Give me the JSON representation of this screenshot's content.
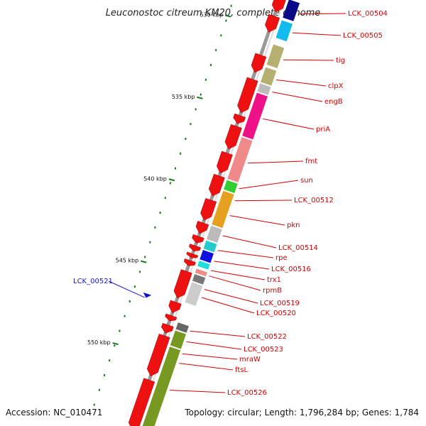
{
  "title": "Leuconostoc citreum KM20, complete genome",
  "footer": {
    "accession": "Accession: NC_010471",
    "summary": "Topology: circular; Length: 1,796,284 bp; Genes: 1,784"
  },
  "colors": {
    "backbone": "#999999",
    "cds_forward": "#ee1111",
    "label_red": "#d40000",
    "label_blue": "#1a1acc",
    "tick_green": "#1e7a1e"
  },
  "kbp_markers": [
    {
      "kbp": 530,
      "label": "530 kbp"
    },
    {
      "kbp": 535,
      "label": "535 kbp"
    },
    {
      "kbp": 540,
      "label": "540 kbp"
    },
    {
      "kbp": 545,
      "label": "545 kbp"
    },
    {
      "kbp": 550,
      "label": "550 kbp"
    }
  ],
  "genes": [
    {
      "name": "LCK_00504",
      "color": "#0a0a88"
    },
    {
      "name": "LCK_00505",
      "color": "#11bbee"
    },
    {
      "name": "tig",
      "color": "#b5b070"
    },
    {
      "name": "clpX",
      "color": "#b5b070"
    },
    {
      "name": "engB",
      "color": "#bbbbbb"
    },
    {
      "name": "priA",
      "color": "#ee1188"
    },
    {
      "name": "fmt",
      "color": "#f08a8a"
    },
    {
      "name": "sun",
      "color": "#f08a8a"
    },
    {
      "name": "LCK_00512",
      "color": "#33cc33"
    },
    {
      "name": "pkn",
      "color": "#e6a020"
    },
    {
      "name": "LCK_00514",
      "color": "#bbbbbb"
    },
    {
      "name": "rpe",
      "color": "#22cccc"
    },
    {
      "name": "LCK_00516",
      "color": "#1111dd"
    },
    {
      "name": "trx1",
      "color": "#22dddd"
    },
    {
      "name": "rpmB",
      "color": "#f08a8a"
    },
    {
      "name": "LCK_00519",
      "color": "#777777"
    },
    {
      "name": "LCK_00520",
      "color": "#cccccc"
    },
    {
      "name": "LCK_00521",
      "color": "#1111dd"
    },
    {
      "name": "LCK_00522",
      "color": "#666666"
    },
    {
      "name": "LCK_00523",
      "color": "#779922"
    },
    {
      "name": "mraW",
      "color": "#779922"
    },
    {
      "name": "ftsL",
      "color": "#779922"
    },
    {
      "name": "LCK_00526",
      "color": "#779922"
    }
  ]
}
